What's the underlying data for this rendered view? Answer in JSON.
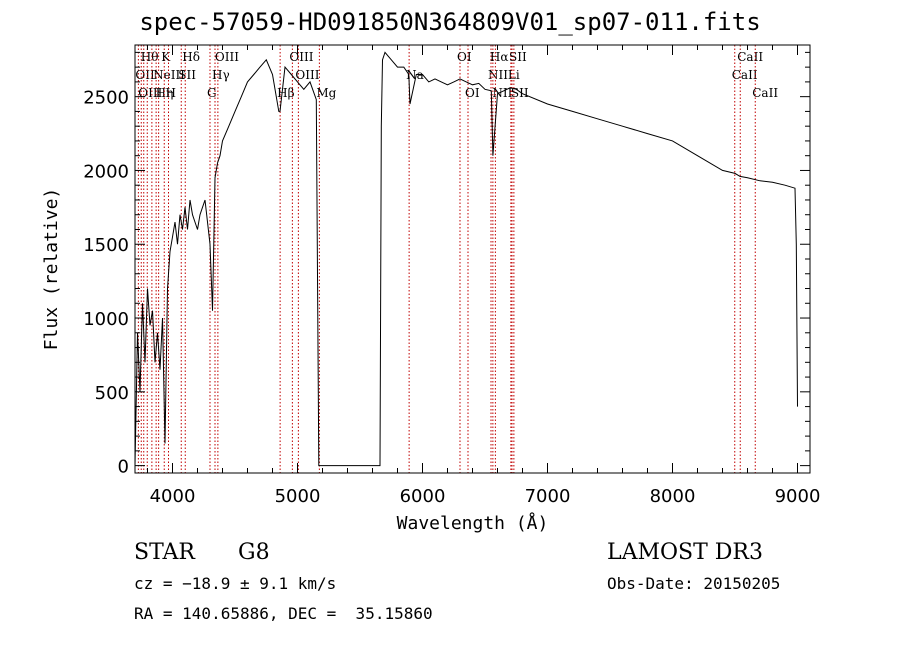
{
  "chart_data": {
    "type": "line",
    "title": "spec-57059-HD091850N364809V01_sp07-011.fits",
    "xlabel": "Wavelength (Å)",
    "ylabel": "Flux (relative)",
    "xlim": [
      3700,
      9100
    ],
    "ylim": [
      -50,
      2850
    ],
    "xticks": [
      4000,
      5000,
      6000,
      7000,
      8000,
      9000
    ],
    "yticks": [
      0,
      500,
      1000,
      1500,
      2000,
      2500
    ],
    "grid": false,
    "series": [
      {
        "x": [
          3700,
          3720,
          3740,
          3760,
          3780,
          3800,
          3820,
          3840,
          3860,
          3880,
          3900,
          3920,
          3940,
          3960,
          3980,
          4000,
          4020,
          4040,
          4060,
          4080,
          4100,
          4120,
          4140,
          4160,
          4180,
          4200,
          4220,
          4240,
          4260,
          4280,
          4300,
          4320,
          4340,
          4360,
          4380,
          4400,
          4450,
          4500,
          4550,
          4600,
          4650,
          4700,
          4750,
          4800,
          4850,
          4860,
          4900,
          4950,
          5000,
          5050,
          5100,
          5150,
          5170,
          5180,
          5190,
          5660,
          5670,
          5680,
          5700,
          5750,
          5800,
          5850,
          5890,
          5900,
          5950,
          6000,
          6050,
          6100,
          6150,
          6200,
          6250,
          6300,
          6350,
          6400,
          6450,
          6500,
          6550,
          6563,
          6600,
          6650,
          6700,
          6750,
          6800,
          7000,
          7200,
          7400,
          7600,
          7800,
          8000,
          8200,
          8400,
          8500,
          8540,
          8600,
          8700,
          8800,
          8900,
          8980,
          8990,
          9000
        ],
        "y": [
          0,
          900,
          500,
          1100,
          700,
          1200,
          950,
          1050,
          700,
          900,
          650,
          1000,
          150,
          1200,
          1450,
          1550,
          1650,
          1500,
          1700,
          1600,
          1750,
          1600,
          1800,
          1700,
          1650,
          1600,
          1700,
          1750,
          1800,
          1650,
          1500,
          1050,
          1950,
          2050,
          2100,
          2200,
          2300,
          2400,
          2500,
          2600,
          2650,
          2700,
          2750,
          2650,
          2400,
          2400,
          2700,
          2650,
          2600,
          2550,
          2600,
          2480,
          0,
          0,
          0,
          0,
          2300,
          2750,
          2800,
          2750,
          2700,
          2700,
          2650,
          2450,
          2650,
          2650,
          2600,
          2620,
          2600,
          2580,
          2600,
          2620,
          2600,
          2580,
          2590,
          2550,
          2540,
          2100,
          2520,
          2540,
          2560,
          2550,
          2520,
          2450,
          2400,
          2350,
          2300,
          2250,
          2200,
          2100,
          2000,
          1980,
          1960,
          1950,
          1930,
          1920,
          1900,
          1880,
          1500,
          400
        ]
      }
    ],
    "lines": [
      {
        "wave": 3727,
        "label": "OII",
        "row": 1
      },
      {
        "wave": 3750,
        "label": "OIII",
        "row": 2
      },
      {
        "wave": 3770,
        "label": "Hθ",
        "row": 0
      },
      {
        "wave": 3798,
        "label": "",
        "row": -1
      },
      {
        "wave": 3835,
        "label": "",
        "row": -1
      },
      {
        "wave": 3869,
        "label": "NeIII",
        "row": 1
      },
      {
        "wave": 3889,
        "label": "Hη",
        "row": 2
      },
      {
        "wave": 3934,
        "label": "K",
        "row": 0
      },
      {
        "wave": 3968,
        "label": "H",
        "row": 2
      },
      {
        "wave": 4070,
        "label": "SII",
        "row": 1
      },
      {
        "wave": 4102,
        "label": "Hδ",
        "row": 0
      },
      {
        "wave": 4300,
        "label": "G",
        "row": 2
      },
      {
        "wave": 4340,
        "label": "Hγ",
        "row": 1
      },
      {
        "wave": 4363,
        "label": "OIII",
        "row": 0
      },
      {
        "wave": 4861,
        "label": "Hβ",
        "row": 2
      },
      {
        "wave": 4959,
        "label": "OIII",
        "row": 0
      },
      {
        "wave": 5007,
        "label": "OIII",
        "row": 1
      },
      {
        "wave": 5175,
        "label": "Mg",
        "row": 2
      },
      {
        "wave": 5893,
        "label": "Na",
        "row": 1
      },
      {
        "wave": 6300,
        "label": "OI",
        "row": 0
      },
      {
        "wave": 6364,
        "label": "OI",
        "row": 2
      },
      {
        "wave": 6548,
        "label": "NII",
        "row": 1
      },
      {
        "wave": 6563,
        "label": "Hα",
        "row": 0
      },
      {
        "wave": 6583,
        "label": "NII",
        "row": 2
      },
      {
        "wave": 6707,
        "label": "Li",
        "row": 1
      },
      {
        "wave": 6716,
        "label": "SII",
        "row": 0
      },
      {
        "wave": 6731,
        "label": "SII",
        "row": 2
      },
      {
        "wave": 8498,
        "label": "CaII",
        "row": 1
      },
      {
        "wave": 8542,
        "label": "CaII",
        "row": 0
      },
      {
        "wave": 8662,
        "label": "CaII",
        "row": 2
      }
    ]
  },
  "info": {
    "class": "STAR",
    "subclass": "G8",
    "survey": "LAMOST DR3",
    "redshift": "cz = −18.9 ± 9.1 km/s",
    "obs_date": "Obs-Date: 20150205",
    "coords": "RA = 140.65886, DEC =  35.15860"
  }
}
